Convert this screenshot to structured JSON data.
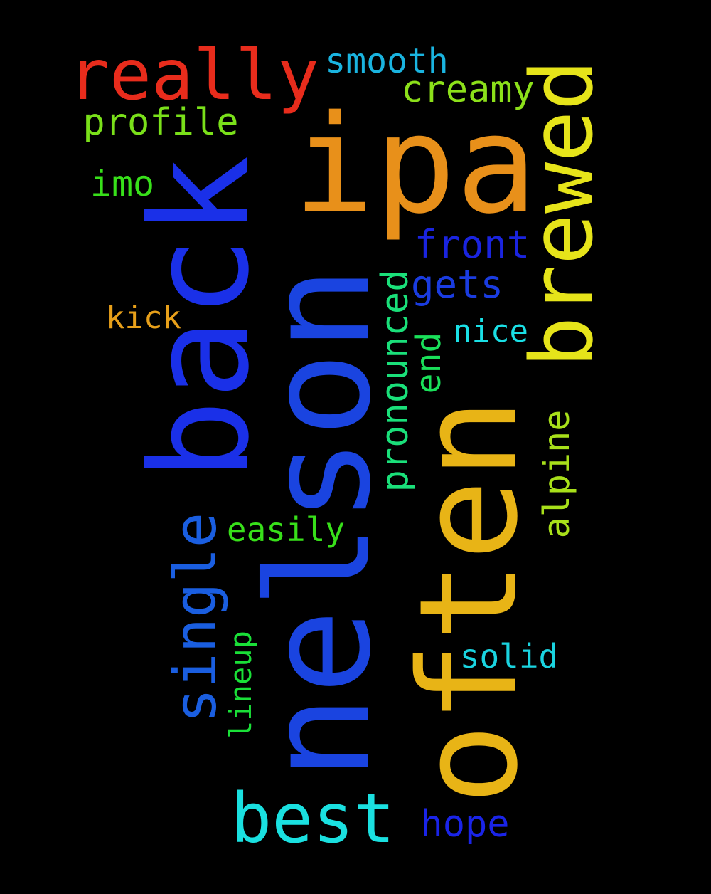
{
  "words": [
    {
      "text": "nelson",
      "color": "#1a44e0"
    },
    {
      "text": "often",
      "color": "#e8b416"
    },
    {
      "text": "back",
      "color": "#1a30e8"
    },
    {
      "text": "ipa",
      "color": "#e8901a"
    },
    {
      "text": "brewed",
      "color": "#e6e41a"
    },
    {
      "text": "really",
      "color": "#e82c1c"
    },
    {
      "text": "best",
      "color": "#1ae0e0"
    },
    {
      "text": "single",
      "color": "#1a5ee0"
    },
    {
      "text": "pronounced",
      "color": "#1ae07a"
    },
    {
      "text": "alpine",
      "color": "#a8e01a"
    },
    {
      "text": "front",
      "color": "#1a24e0"
    },
    {
      "text": "gets",
      "color": "#1a3ce0"
    },
    {
      "text": "profile",
      "color": "#7ae01a"
    },
    {
      "text": "creamy",
      "color": "#8ce01a"
    },
    {
      "text": "hope",
      "color": "#1a24e8"
    },
    {
      "text": "smooth",
      "color": "#1ab4e0"
    },
    {
      "text": "easily",
      "color": "#38e01a"
    },
    {
      "text": "end",
      "color": "#1ae05a"
    },
    {
      "text": "lineup",
      "color": "#1ae038"
    },
    {
      "text": "solid",
      "color": "#1ad4e0"
    },
    {
      "text": "nice",
      "color": "#1ae0e6"
    },
    {
      "text": "imo",
      "color": "#38e01a"
    },
    {
      "text": "kick",
      "color": "#e8a01a"
    }
  ]
}
